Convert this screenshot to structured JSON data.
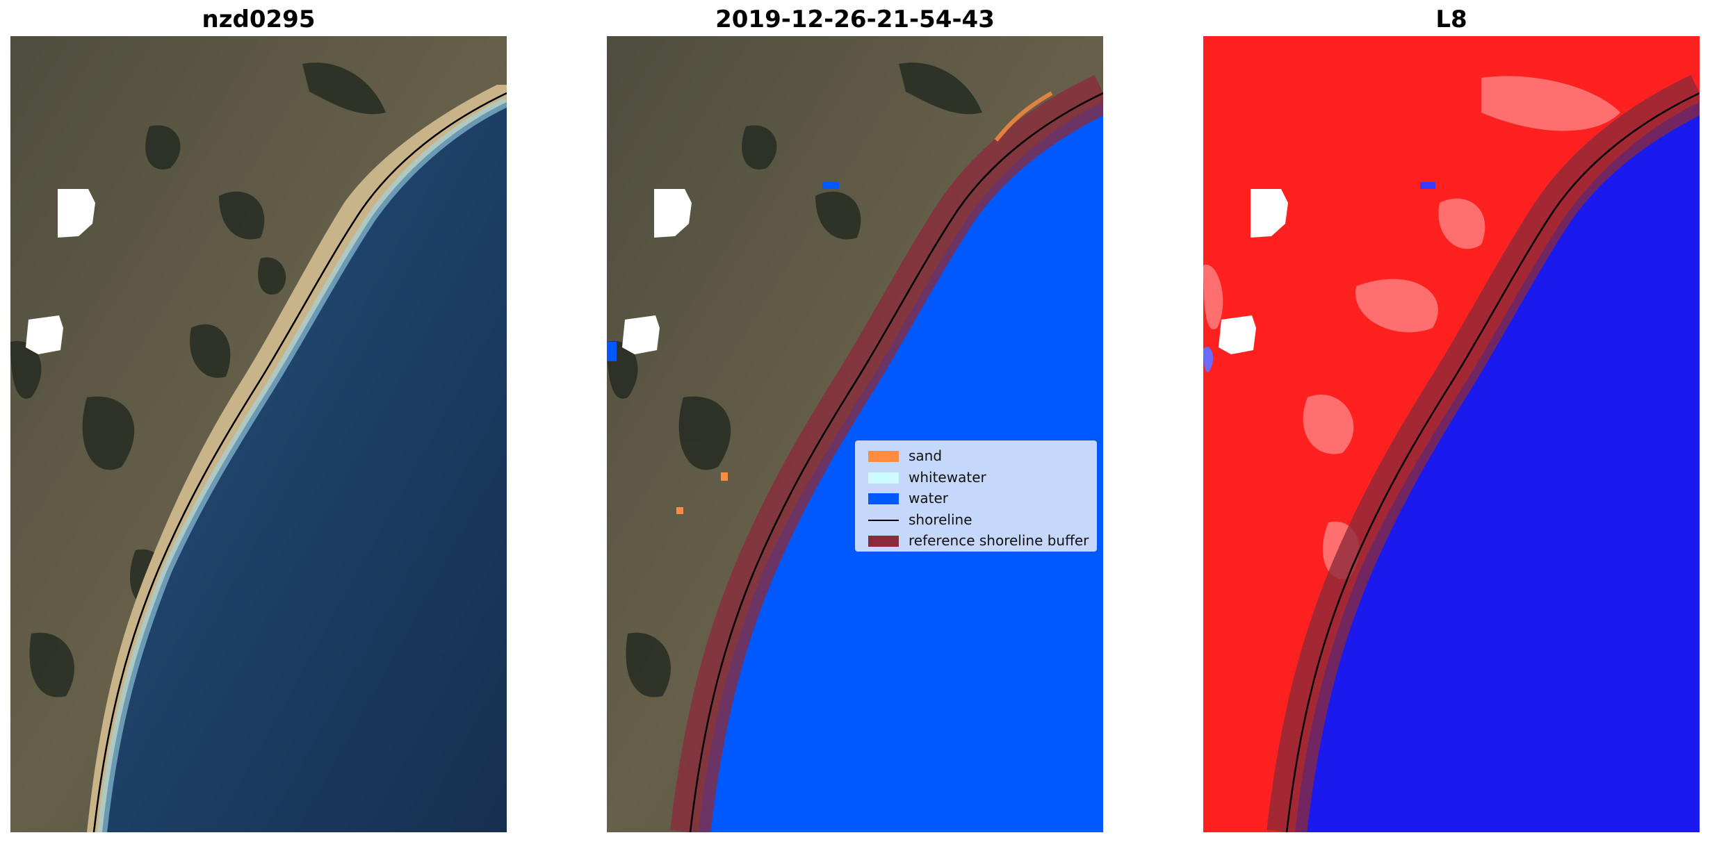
{
  "panels": [
    {
      "id": "rgb",
      "title": "nzd0295"
    },
    {
      "id": "classified",
      "title": "2019-12-26-21-54-43"
    },
    {
      "id": "mndwi",
      "title": "L8"
    }
  ],
  "legend": {
    "items": [
      {
        "label": "sand",
        "kind": "patch",
        "color": "#ff8c40"
      },
      {
        "label": "whitewater",
        "kind": "patch",
        "color": "#ccfcff"
      },
      {
        "label": "water",
        "kind": "patch",
        "color": "#0059ff"
      },
      {
        "label": "shoreline",
        "kind": "line",
        "color": "#000000"
      },
      {
        "label": "reference shoreline buffer",
        "kind": "patch",
        "color": "#8b2a3a"
      }
    ]
  },
  "colors": {
    "land": "#5a5a48",
    "sea": "#1d3f66",
    "sand": "#ff8c40",
    "whitewater": "#ccfcff",
    "water": "#0059ff",
    "buffer": "#8b2a3a",
    "shoreline": "#000000",
    "index_land": "#ff2020",
    "index_water": "#1a1aee",
    "cloud_mask": "#ffffff"
  }
}
